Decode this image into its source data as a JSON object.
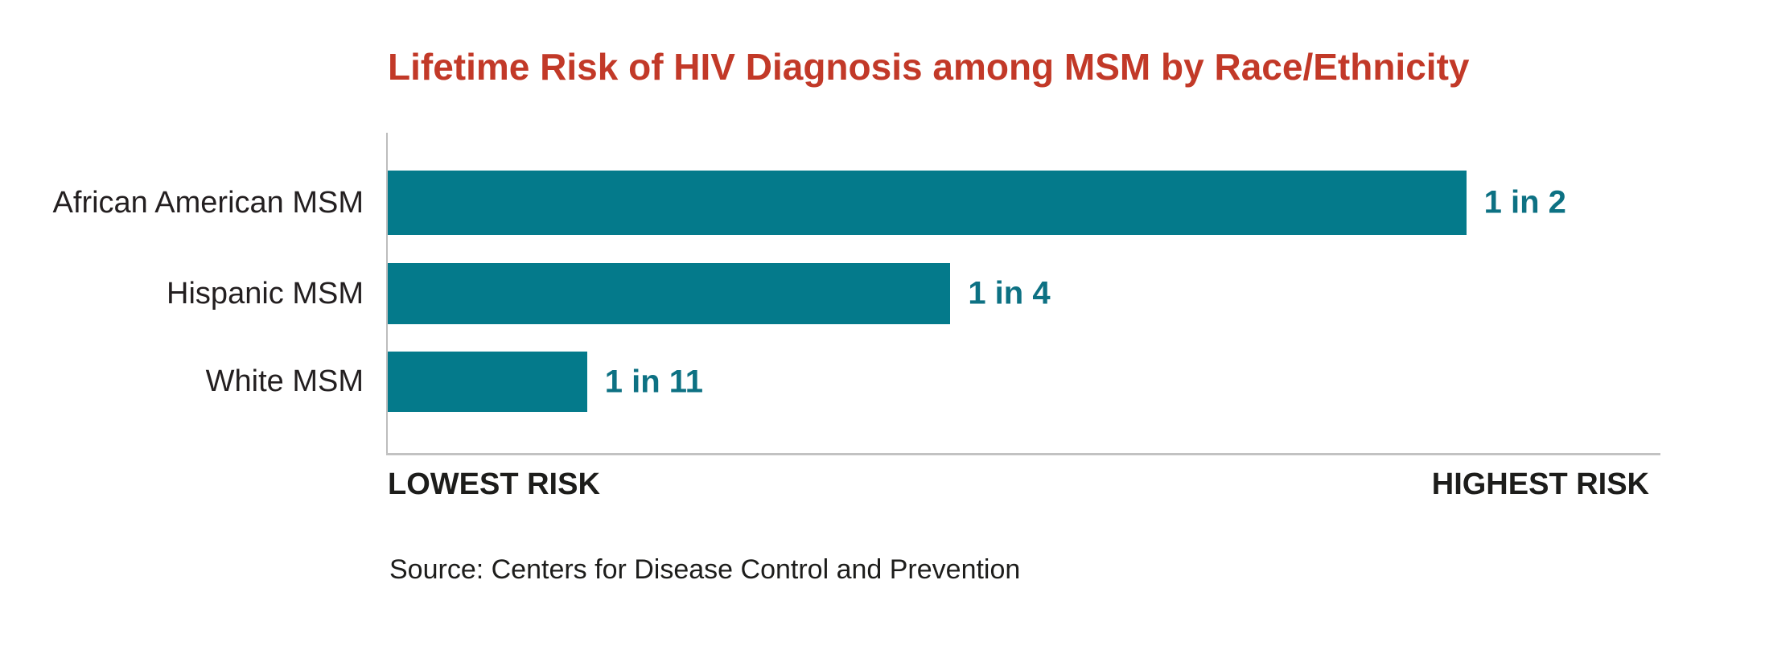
{
  "chart": {
    "title": "Lifetime Risk of HIV Diagnosis among MSM by Race/Ethnicity",
    "axis_left_label": "LOWEST RISK",
    "axis_right_label": "HIGHEST RISK",
    "source": "Source: Centers for Disease Control and Prevention"
  },
  "chart_data": {
    "type": "bar",
    "orientation": "horizontal",
    "title": "Lifetime Risk of HIV Diagnosis among MSM by Race/Ethnicity",
    "categories": [
      "African American MSM",
      "Hispanic MSM",
      "White MSM"
    ],
    "series": [
      {
        "name": "Lifetime risk of HIV diagnosis",
        "values": [
          0.5,
          0.25,
          0.091
        ]
      }
    ],
    "value_labels": [
      "1 in 2",
      "1 in 4",
      "1 in 11"
    ],
    "bar_width_pct": [
      85.5,
      44.6,
      15.8
    ],
    "x_axis": {
      "min_label": "LOWEST RISK",
      "max_label": "HIGHEST RISK",
      "ticks": "none",
      "gridlines": false
    },
    "legend": "none",
    "annotations": [
      "Source: Centers for Disease Control and Prevention"
    ],
    "colors": {
      "bar": "#047a8b",
      "value_label": "#0d7183",
      "title": "#c23928",
      "text": "#231f20",
      "axis_line": "#c0c0c0"
    }
  }
}
